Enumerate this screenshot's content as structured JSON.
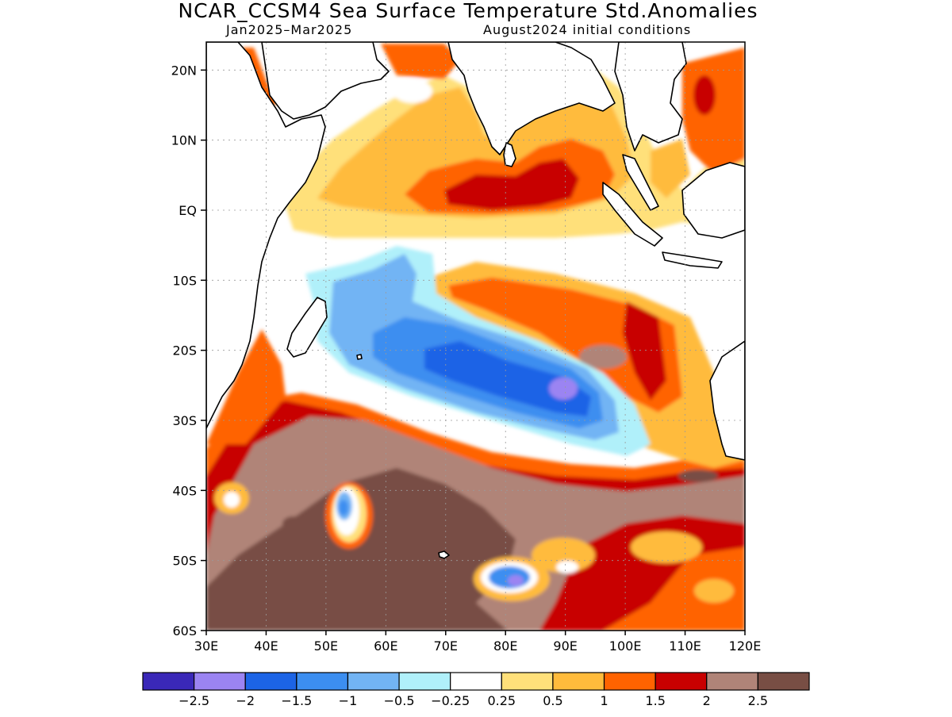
{
  "title": "NCAR_CCSM4 Sea Surface Temperature Std.Anomalies",
  "subtitle_period": "Jan2025–Mar2025",
  "subtitle_init": "August2024 initial conditions",
  "map": {
    "lon_range": [
      30,
      120
    ],
    "lat_range": [
      -60,
      24
    ],
    "lat_ticks": [
      {
        "v": 20,
        "label": "20N"
      },
      {
        "v": 10,
        "label": "10N"
      },
      {
        "v": 0,
        "label": "EQ"
      },
      {
        "v": -10,
        "label": "10S"
      },
      {
        "v": -20,
        "label": "20S"
      },
      {
        "v": -30,
        "label": "30S"
      },
      {
        "v": -40,
        "label": "40S"
      },
      {
        "v": -50,
        "label": "50S"
      },
      {
        "v": -60,
        "label": "60S"
      }
    ],
    "lon_ticks": [
      {
        "v": 30,
        "label": "30E"
      },
      {
        "v": 40,
        "label": "40E"
      },
      {
        "v": 50,
        "label": "50E"
      },
      {
        "v": 60,
        "label": "60E"
      },
      {
        "v": 70,
        "label": "70E"
      },
      {
        "v": 80,
        "label": "80E"
      },
      {
        "v": 90,
        "label": "90E"
      },
      {
        "v": 100,
        "label": "100E"
      },
      {
        "v": 110,
        "label": "110E"
      },
      {
        "v": 120,
        "label": "120E"
      }
    ],
    "grid": true
  },
  "colorbar": {
    "colors": [
      "#3a28b8",
      "#9b84f2",
      "#1c64e6",
      "#3c8ef0",
      "#72b4f4",
      "#b0f0fa",
      "#ffffff",
      "#ffe07a",
      "#ffbb3c",
      "#ff6300",
      "#c80000",
      "#b08478",
      "#784e44"
    ],
    "labels": [
      "−2.5",
      "−2",
      "−1.5",
      "−1",
      "−0.5",
      "−0.25",
      "0.25",
      "0.5",
      "1",
      "1.5",
      "2",
      "2.5"
    ]
  }
}
